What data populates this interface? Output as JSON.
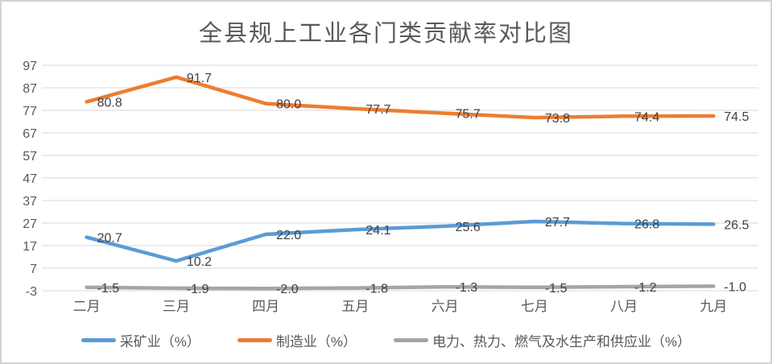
{
  "chart_data": {
    "type": "line",
    "title": "全县规上工业各门类贡献率对比图",
    "categories": [
      "二月",
      "三月",
      "四月",
      "五月",
      "六月",
      "七月",
      "八月",
      "九月"
    ],
    "series": [
      {
        "name": "采矿业（%）",
        "color": "#5B9BD5",
        "values": [
          20.7,
          10.2,
          22.0,
          24.1,
          25.6,
          27.7,
          26.8,
          26.5
        ]
      },
      {
        "name": "制造业（%）",
        "color": "#ED7D31",
        "values": [
          80.8,
          91.7,
          80.0,
          77.7,
          75.7,
          73.8,
          74.4,
          74.5
        ]
      },
      {
        "name": "电力、热力、燃气及水生产和供应业（%）",
        "color": "#A5A5A5",
        "values": [
          -1.5,
          -1.9,
          -2.0,
          -1.8,
          -1.3,
          -1.5,
          -1.2,
          -1.0
        ]
      }
    ],
    "yticks": [
      -3,
      7,
      17,
      27,
      37,
      47,
      57,
      67,
      77,
      87,
      97
    ],
    "ylim": [
      -3,
      97
    ],
    "grid": true,
    "data_labels": true,
    "data_label_decimals": 1,
    "legend_position": "bottom",
    "colors": {
      "background": "#FFFFFF",
      "frame_border": "#D3D3D3",
      "gridline": "#D9D9D9",
      "title_text": "#595959",
      "axis_text": "#595959",
      "data_label_text": "#404040"
    }
  }
}
